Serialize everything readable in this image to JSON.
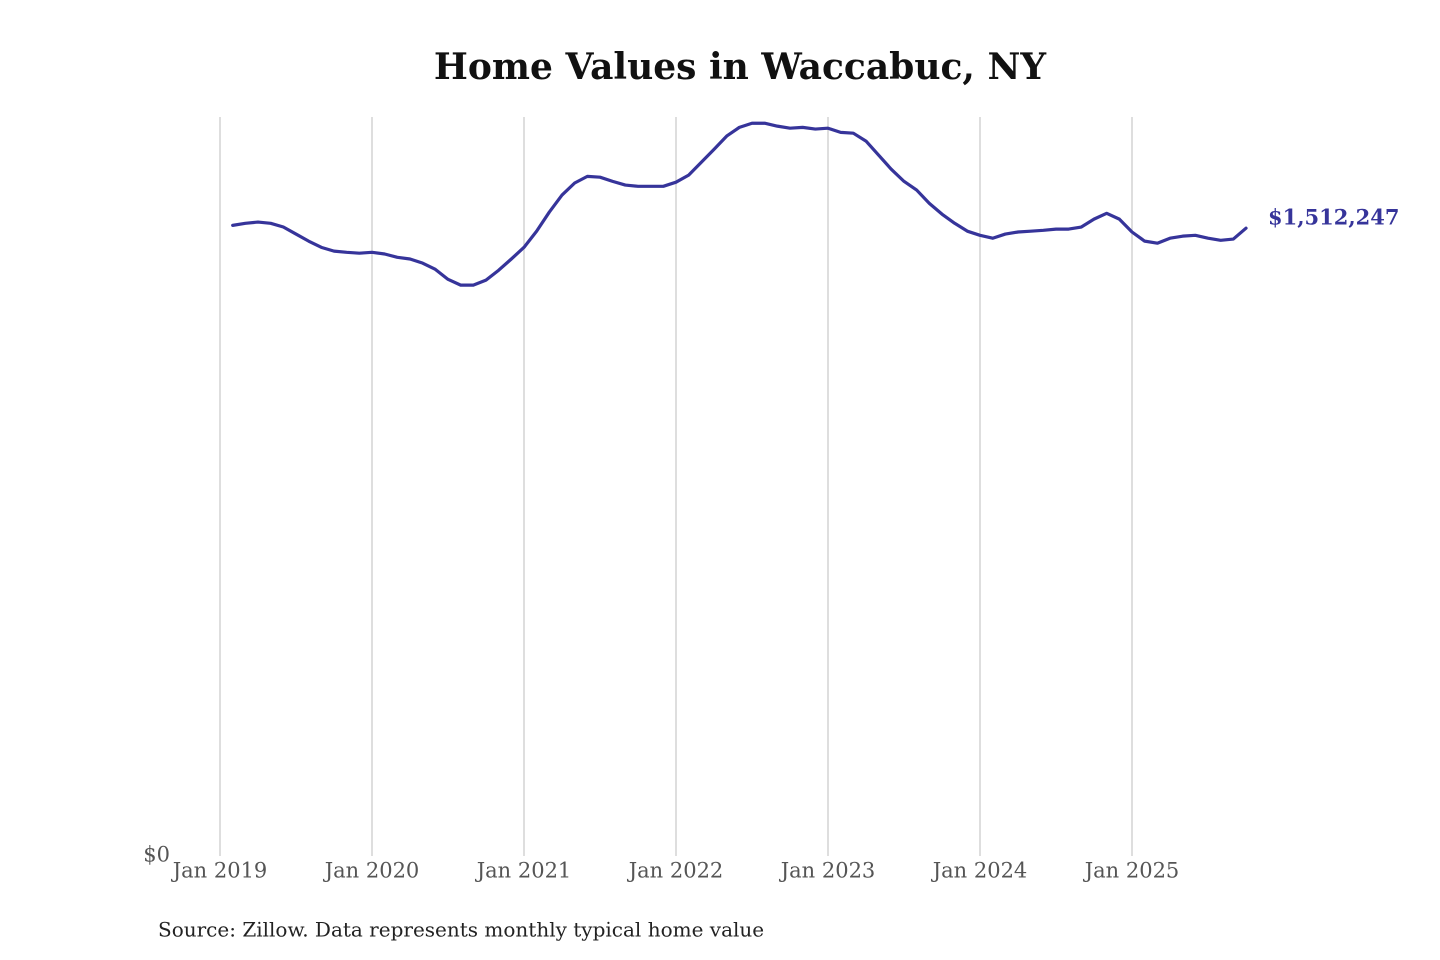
{
  "chart_data": {
    "type": "line",
    "title": "Home Values in Waccabuc, NY",
    "source": "Source: Zillow. Data represents monthly typical home value",
    "x": [
      "2019-02",
      "2019-03",
      "2019-04",
      "2019-05",
      "2019-06",
      "2019-07",
      "2019-08",
      "2019-09",
      "2019-10",
      "2019-11",
      "2019-12",
      "2020-01",
      "2020-02",
      "2020-03",
      "2020-04",
      "2020-05",
      "2020-06",
      "2020-07",
      "2020-08",
      "2020-09",
      "2020-10",
      "2020-11",
      "2020-12",
      "2021-01",
      "2021-02",
      "2021-03",
      "2021-04",
      "2021-05",
      "2021-06",
      "2021-07",
      "2021-08",
      "2021-09",
      "2021-10",
      "2021-11",
      "2021-12",
      "2022-01",
      "2022-02",
      "2022-03",
      "2022-04",
      "2022-05",
      "2022-06",
      "2022-07",
      "2022-08",
      "2022-09",
      "2022-10",
      "2022-11",
      "2022-12",
      "2023-01",
      "2023-02",
      "2023-03",
      "2023-04",
      "2023-05",
      "2023-06",
      "2023-07",
      "2023-08",
      "2023-09",
      "2023-10",
      "2023-11",
      "2023-12",
      "2024-01",
      "2024-02",
      "2024-03",
      "2024-04",
      "2024-05",
      "2024-06",
      "2024-07",
      "2024-08",
      "2024-09",
      "2024-10",
      "2024-11",
      "2024-12",
      "2025-01",
      "2025-02",
      "2025-03",
      "2025-04",
      "2025-05",
      "2025-06",
      "2025-07",
      "2025-08",
      "2025-09",
      "2025-10"
    ],
    "series": [
      {
        "name": "Home value",
        "color": "#36349a",
        "values": [
          1519000,
          1524000,
          1527000,
          1524000,
          1515000,
          1498000,
          1481000,
          1466000,
          1457000,
          1454000,
          1452000,
          1454000,
          1450000,
          1442000,
          1438000,
          1428000,
          1413000,
          1389000,
          1375000,
          1375000,
          1387000,
          1411000,
          1438000,
          1466000,
          1505000,
          1551000,
          1592000,
          1621000,
          1637000,
          1635000,
          1625000,
          1616000,
          1613000,
          1613000,
          1613000,
          1623000,
          1640000,
          1671000,
          1702000,
          1734000,
          1755000,
          1765000,
          1765000,
          1758000,
          1753000,
          1755000,
          1751000,
          1753000,
          1743000,
          1741000,
          1722000,
          1688000,
          1654000,
          1625000,
          1604000,
          1572000,
          1546000,
          1524000,
          1505000,
          1495000,
          1488000,
          1498000,
          1503000,
          1505000,
          1507000,
          1510000,
          1510000,
          1515000,
          1534000,
          1548000,
          1534000,
          1503000,
          1481000,
          1476000,
          1488000,
          1493000,
          1495000,
          1488000,
          1483000,
          1486000,
          1512247
        ],
        "value_labels": [
          null,
          null,
          null,
          null,
          null,
          null,
          null,
          null,
          null,
          null,
          null,
          null,
          null,
          null,
          null,
          null,
          null,
          null,
          null,
          null,
          null,
          null,
          null,
          null,
          null,
          null,
          null,
          null,
          null,
          null,
          null,
          null,
          null,
          null,
          null,
          null,
          null,
          null,
          null,
          null,
          null,
          null,
          null,
          null,
          null,
          null,
          null,
          null,
          null,
          null,
          null,
          null,
          null,
          null,
          null,
          null,
          null,
          null,
          null,
          null,
          null,
          null,
          null,
          null,
          null,
          null,
          null,
          null,
          null,
          null,
          null,
          null,
          null,
          null,
          null,
          null,
          null,
          null,
          null,
          null,
          "$1,512,247"
        ]
      }
    ],
    "xlim": [
      "2019-01",
      "2025-10"
    ],
    "xticks": [
      {
        "value": "2019-01",
        "label": "Jan 2019"
      },
      {
        "value": "2020-01",
        "label": "Jan 2020"
      },
      {
        "value": "2021-01",
        "label": "Jan 2021"
      },
      {
        "value": "2022-01",
        "label": "Jan 2022"
      },
      {
        "value": "2023-01",
        "label": "Jan 2023"
      },
      {
        "value": "2024-01",
        "label": "Jan 2024"
      },
      {
        "value": "2025-01",
        "label": "Jan 2025"
      }
    ],
    "ylim": [
      0,
      1780000
    ],
    "yticks": [
      {
        "value": 0,
        "label": "$0"
      }
    ],
    "grid": true
  }
}
